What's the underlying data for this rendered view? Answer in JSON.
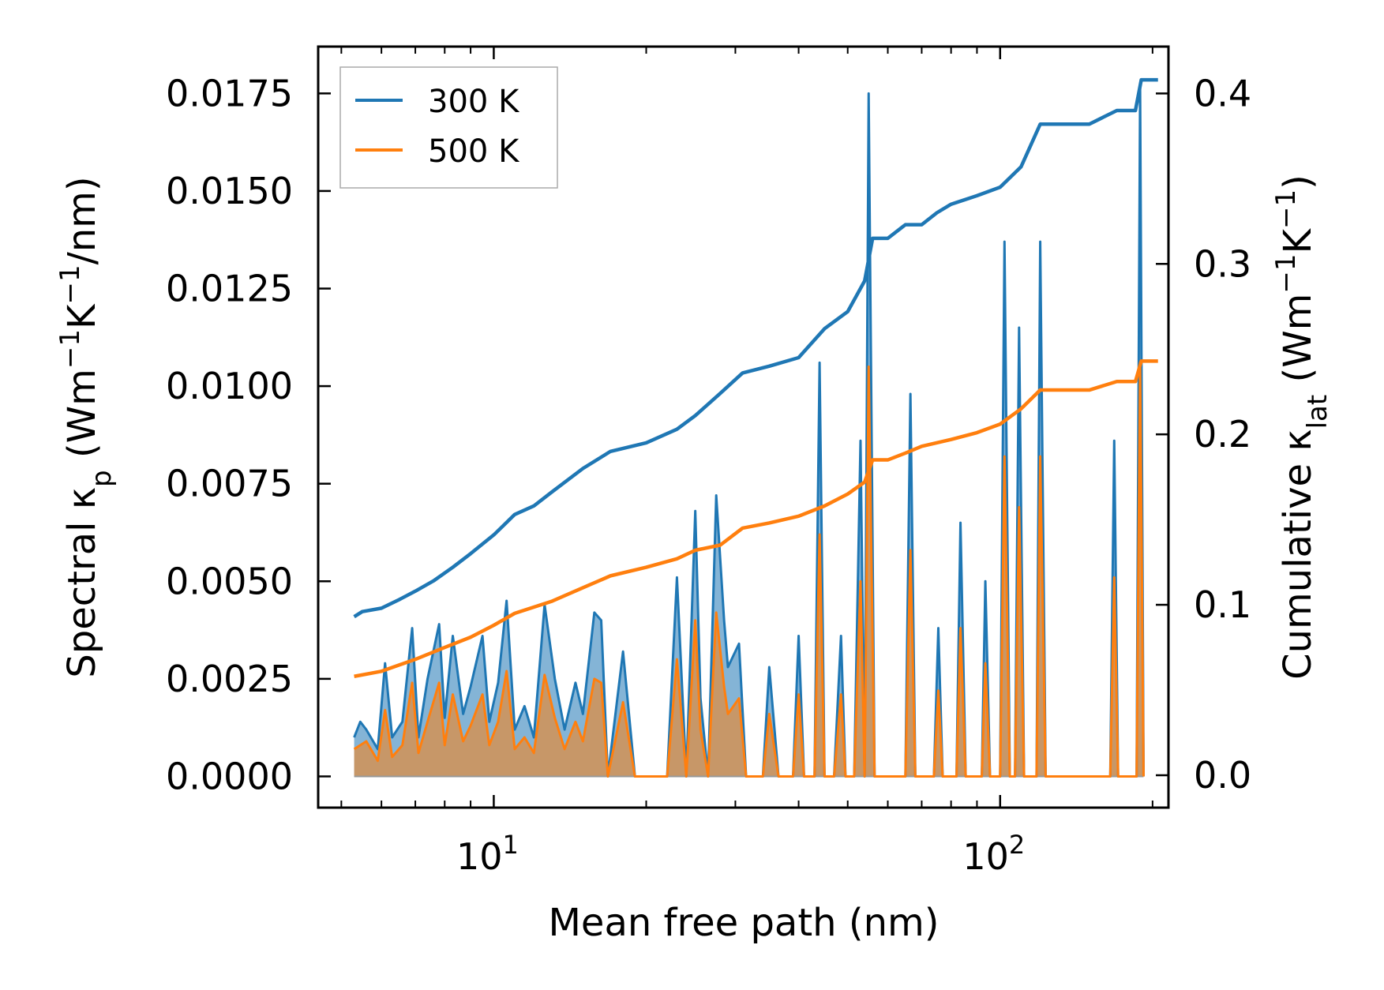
{
  "chart_data": {
    "type": "line",
    "xscale": "log",
    "xlabel": "Mean free path (nm)",
    "ylabel_left": "Spectral κp (Wm−1K−1/nm)",
    "ylabel_right": "Cumulative κlat (Wm−1K−1)",
    "ylabel_left_parts": {
      "pre": "Spectral κ",
      "sub": "p",
      "mid": " (Wm",
      "sup1": "−1",
      "mid2": "K",
      "sup2": "−1",
      "post": "/nm)"
    },
    "ylabel_right_parts": {
      "pre": "Cumulative κ",
      "sub": "lat",
      "mid": " (Wm",
      "sup1": "−1",
      "mid2": "K",
      "sup2": "−1",
      "post": ")"
    },
    "xlim": [
      4.5,
      215
    ],
    "ylim_left": [
      -0.0008,
      0.0187
    ],
    "ylim_right": [
      -0.019,
      0.4275
    ],
    "x_ticks": [
      {
        "value": 10,
        "base": "10",
        "exp": "1"
      },
      {
        "value": 100,
        "base": "10",
        "exp": "2"
      }
    ],
    "y_left_ticks": [
      {
        "value": 0.0,
        "label": "0.0000"
      },
      {
        "value": 0.0025,
        "label": "0.0025"
      },
      {
        "value": 0.005,
        "label": "0.0050"
      },
      {
        "value": 0.0075,
        "label": "0.0075"
      },
      {
        "value": 0.01,
        "label": "0.0100"
      },
      {
        "value": 0.0125,
        "label": "0.0125"
      },
      {
        "value": 0.015,
        "label": "0.0150"
      },
      {
        "value": 0.0175,
        "label": "0.0175"
      }
    ],
    "y_right_ticks": [
      {
        "value": 0.0,
        "label": "0.0"
      },
      {
        "value": 0.1,
        "label": "0.1"
      },
      {
        "value": 0.2,
        "label": "0.2"
      },
      {
        "value": 0.3,
        "label": "0.3"
      },
      {
        "value": 0.4,
        "label": "0.4"
      }
    ],
    "legend": {
      "location": "top-left",
      "entries": [
        {
          "name": "300 K",
          "color": "#1f77b4"
        },
        {
          "name": "500 K",
          "color": "#ff7f0e"
        }
      ]
    },
    "series": [
      {
        "name": "300 K",
        "color": "#1f77b4",
        "cumulative": [
          [
            5.3,
            0.093
          ],
          [
            5.5,
            0.096
          ],
          [
            6.0,
            0.098
          ],
          [
            6.5,
            0.103
          ],
          [
            7.0,
            0.108
          ],
          [
            7.6,
            0.114
          ],
          [
            8.3,
            0.122
          ],
          [
            9.0,
            0.13
          ],
          [
            10.0,
            0.141
          ],
          [
            11.0,
            0.153
          ],
          [
            12.0,
            0.158
          ],
          [
            13.0,
            0.166
          ],
          [
            15.0,
            0.18
          ],
          [
            17.0,
            0.19
          ],
          [
            20.0,
            0.195
          ],
          [
            23.0,
            0.203
          ],
          [
            25.0,
            0.211
          ],
          [
            28.0,
            0.224
          ],
          [
            31.0,
            0.236
          ],
          [
            35.0,
            0.24
          ],
          [
            40.0,
            0.245
          ],
          [
            45.0,
            0.262
          ],
          [
            50.0,
            0.272
          ],
          [
            54.0,
            0.29
          ],
          [
            56.0,
            0.315
          ],
          [
            60.0,
            0.315
          ],
          [
            65.0,
            0.323
          ],
          [
            70.0,
            0.323
          ],
          [
            75.0,
            0.33
          ],
          [
            80.0,
            0.335
          ],
          [
            90.0,
            0.34
          ],
          [
            100.0,
            0.345
          ],
          [
            110.0,
            0.357
          ],
          [
            120.0,
            0.382
          ],
          [
            150.0,
            0.382
          ],
          [
            170.0,
            0.39
          ],
          [
            185.0,
            0.39
          ],
          [
            190.0,
            0.408
          ],
          [
            205.0,
            0.408
          ]
        ],
        "spectral": [
          [
            5.3,
            0.001
          ],
          [
            5.45,
            0.0014
          ],
          [
            5.6,
            0.0012
          ],
          [
            5.9,
            0.0007
          ],
          [
            6.1,
            0.0029
          ],
          [
            6.3,
            0.001
          ],
          [
            6.6,
            0.0014
          ],
          [
            6.9,
            0.0038
          ],
          [
            7.1,
            0.001
          ],
          [
            7.4,
            0.0025
          ],
          [
            7.8,
            0.0039
          ],
          [
            8.0,
            0.0015
          ],
          [
            8.3,
            0.0036
          ],
          [
            8.7,
            0.0016
          ],
          [
            9.0,
            0.0023
          ],
          [
            9.5,
            0.0036
          ],
          [
            9.8,
            0.0014
          ],
          [
            10.2,
            0.0024
          ],
          [
            10.6,
            0.0045
          ],
          [
            11.0,
            0.0012
          ],
          [
            11.5,
            0.0018
          ],
          [
            12.0,
            0.001
          ],
          [
            12.6,
            0.0044
          ],
          [
            13.2,
            0.0025
          ],
          [
            13.8,
            0.0012
          ],
          [
            14.5,
            0.0024
          ],
          [
            15.0,
            0.0016
          ],
          [
            15.8,
            0.0042
          ],
          [
            16.3,
            0.004
          ],
          [
            16.8,
            0.0
          ],
          [
            18.0,
            0.0032
          ],
          [
            19.0,
            0.0
          ],
          [
            22.0,
            0.0
          ],
          [
            23.0,
            0.0051
          ],
          [
            24.0,
            0.0
          ],
          [
            25.0,
            0.0068
          ],
          [
            25.6,
            0.002
          ],
          [
            26.5,
            0.0
          ],
          [
            27.5,
            0.0072
          ],
          [
            28.5,
            0.004
          ],
          [
            29.0,
            0.0028
          ],
          [
            30.5,
            0.0034
          ],
          [
            31.5,
            0.0
          ],
          [
            34.0,
            0.0
          ],
          [
            35.0,
            0.0028
          ],
          [
            36.5,
            0.0
          ],
          [
            39.0,
            0.0
          ],
          [
            40.0,
            0.0036
          ],
          [
            41.0,
            0.0
          ],
          [
            43.0,
            0.0
          ],
          [
            44.0,
            0.0106
          ],
          [
            45.0,
            0.0
          ],
          [
            47.0,
            0.0
          ],
          [
            48.5,
            0.0036
          ],
          [
            49.5,
            0.0
          ],
          [
            51.5,
            0.0
          ],
          [
            53.0,
            0.0086
          ],
          [
            54.0,
            0.0
          ],
          [
            55.0,
            0.0175
          ],
          [
            56.5,
            0.0
          ],
          [
            65.0,
            0.0
          ],
          [
            66.5,
            0.0098
          ],
          [
            68.0,
            0.0
          ],
          [
            74.0,
            0.0
          ],
          [
            75.5,
            0.0038
          ],
          [
            77.0,
            0.0
          ],
          [
            82.0,
            0.0
          ],
          [
            83.5,
            0.0065
          ],
          [
            85.5,
            0.0
          ],
          [
            92.0,
            0.0
          ],
          [
            93.5,
            0.005
          ],
          [
            95.5,
            0.0
          ],
          [
            100.0,
            0.0
          ],
          [
            102.0,
            0.0137
          ],
          [
            104.5,
            0.0
          ],
          [
            107.0,
            0.0
          ],
          [
            109.0,
            0.0115
          ],
          [
            111.5,
            0.0
          ],
          [
            118.0,
            0.0
          ],
          [
            120.0,
            0.0137
          ],
          [
            123.0,
            0.0
          ],
          [
            165.0,
            0.0
          ],
          [
            168.0,
            0.0086
          ],
          [
            171.0,
            0.0
          ],
          [
            186.0,
            0.0
          ],
          [
            189.0,
            0.0177
          ],
          [
            192.0,
            0.0
          ]
        ]
      },
      {
        "name": "500 K",
        "color": "#ff7f0e",
        "cumulative": [
          [
            5.3,
            0.058
          ],
          [
            6.0,
            0.061
          ],
          [
            7.0,
            0.068
          ],
          [
            8.0,
            0.075
          ],
          [
            9.0,
            0.081
          ],
          [
            10.0,
            0.088
          ],
          [
            11.0,
            0.095
          ],
          [
            13.0,
            0.102
          ],
          [
            15.0,
            0.11
          ],
          [
            17.0,
            0.117
          ],
          [
            20.0,
            0.122
          ],
          [
            23.0,
            0.127
          ],
          [
            25.0,
            0.132
          ],
          [
            28.0,
            0.135
          ],
          [
            31.0,
            0.145
          ],
          [
            35.0,
            0.148
          ],
          [
            40.0,
            0.152
          ],
          [
            45.0,
            0.158
          ],
          [
            50.0,
            0.165
          ],
          [
            54.0,
            0.172
          ],
          [
            56.0,
            0.185
          ],
          [
            60.0,
            0.185
          ],
          [
            65.0,
            0.189
          ],
          [
            70.0,
            0.193
          ],
          [
            80.0,
            0.197
          ],
          [
            90.0,
            0.201
          ],
          [
            100.0,
            0.206
          ],
          [
            110.0,
            0.215
          ],
          [
            120.0,
            0.226
          ],
          [
            150.0,
            0.226
          ],
          [
            170.0,
            0.231
          ],
          [
            185.0,
            0.231
          ],
          [
            190.0,
            0.243
          ],
          [
            205.0,
            0.243
          ]
        ],
        "spectral": [
          [
            5.3,
            0.0007
          ],
          [
            5.6,
            0.0009
          ],
          [
            5.9,
            0.0004
          ],
          [
            6.1,
            0.0017
          ],
          [
            6.3,
            0.0005
          ],
          [
            6.6,
            0.0008
          ],
          [
            6.9,
            0.0024
          ],
          [
            7.1,
            0.0006
          ],
          [
            7.4,
            0.0014
          ],
          [
            7.8,
            0.0024
          ],
          [
            8.0,
            0.0008
          ],
          [
            8.3,
            0.0021
          ],
          [
            8.7,
            0.0009
          ],
          [
            9.0,
            0.0013
          ],
          [
            9.5,
            0.0021
          ],
          [
            9.8,
            0.0008
          ],
          [
            10.2,
            0.0014
          ],
          [
            10.6,
            0.0027
          ],
          [
            11.0,
            0.0007
          ],
          [
            11.5,
            0.001
          ],
          [
            12.0,
            0.0006
          ],
          [
            12.6,
            0.0026
          ],
          [
            13.2,
            0.0015
          ],
          [
            13.8,
            0.0007
          ],
          [
            14.5,
            0.0014
          ],
          [
            15.0,
            0.0009
          ],
          [
            15.8,
            0.0025
          ],
          [
            16.3,
            0.0024
          ],
          [
            16.8,
            0.0
          ],
          [
            18.0,
            0.0019
          ],
          [
            19.0,
            0.0
          ],
          [
            22.0,
            0.0
          ],
          [
            23.0,
            0.003
          ],
          [
            24.0,
            0.0
          ],
          [
            25.0,
            0.004
          ],
          [
            25.6,
            0.0012
          ],
          [
            26.5,
            0.0
          ],
          [
            27.5,
            0.0042
          ],
          [
            28.5,
            0.0023
          ],
          [
            29.0,
            0.0016
          ],
          [
            30.5,
            0.002
          ],
          [
            31.5,
            0.0
          ],
          [
            34.0,
            0.0
          ],
          [
            35.0,
            0.0016
          ],
          [
            36.5,
            0.0
          ],
          [
            39.0,
            0.0
          ],
          [
            40.0,
            0.0021
          ],
          [
            41.0,
            0.0
          ],
          [
            43.0,
            0.0
          ],
          [
            44.0,
            0.0062
          ],
          [
            45.0,
            0.0
          ],
          [
            47.0,
            0.0
          ],
          [
            48.5,
            0.0021
          ],
          [
            49.5,
            0.0
          ],
          [
            51.5,
            0.0
          ],
          [
            53.0,
            0.005
          ],
          [
            54.0,
            0.0
          ],
          [
            55.0,
            0.0105
          ],
          [
            56.5,
            0.0
          ],
          [
            65.0,
            0.0
          ],
          [
            66.5,
            0.0058
          ],
          [
            68.0,
            0.0
          ],
          [
            74.0,
            0.0
          ],
          [
            75.5,
            0.0022
          ],
          [
            77.0,
            0.0
          ],
          [
            82.0,
            0.0
          ],
          [
            83.5,
            0.0038
          ],
          [
            85.5,
            0.0
          ],
          [
            92.0,
            0.0
          ],
          [
            93.5,
            0.0029
          ],
          [
            95.5,
            0.0
          ],
          [
            100.0,
            0.0
          ],
          [
            102.0,
            0.0082
          ],
          [
            104.5,
            0.0
          ],
          [
            107.0,
            0.0
          ],
          [
            109.0,
            0.0069
          ],
          [
            111.5,
            0.0
          ],
          [
            118.0,
            0.0
          ],
          [
            120.0,
            0.0082
          ],
          [
            123.0,
            0.0
          ],
          [
            165.0,
            0.0
          ],
          [
            168.0,
            0.0051
          ],
          [
            171.0,
            0.0
          ],
          [
            186.0,
            0.0
          ],
          [
            189.0,
            0.0106
          ],
          [
            192.0,
            0.0
          ]
        ]
      }
    ]
  }
}
